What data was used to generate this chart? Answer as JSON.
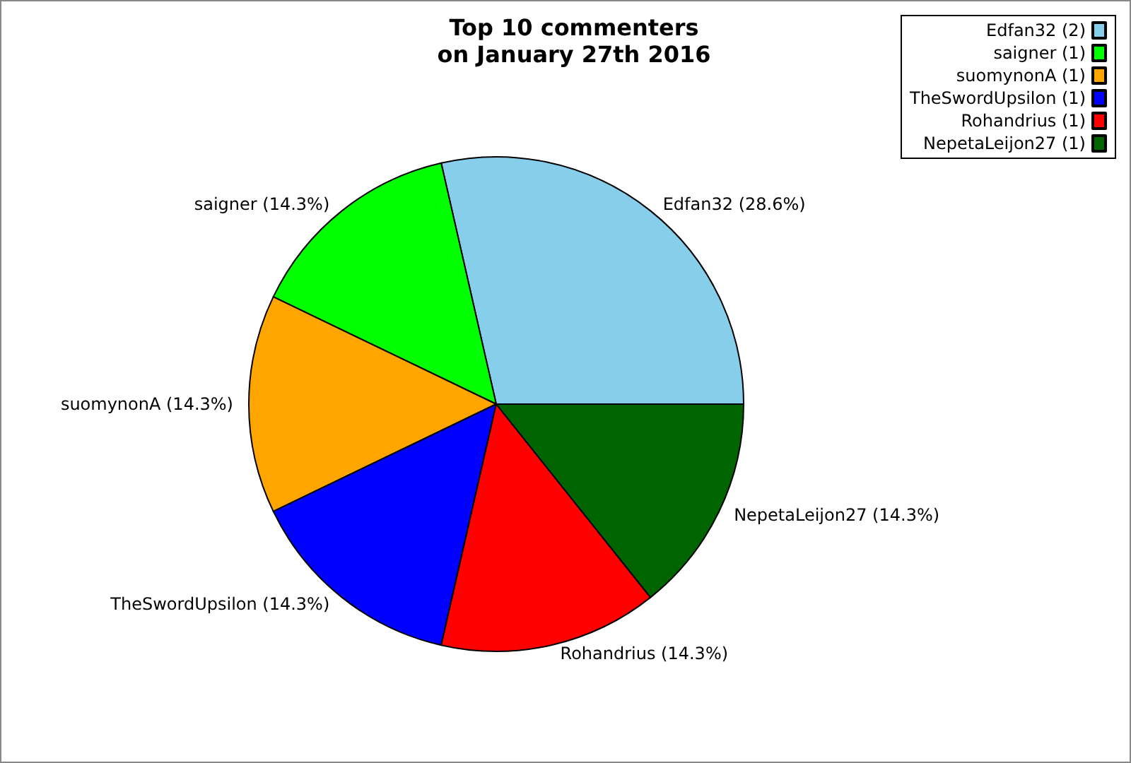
{
  "chart_data": {
    "type": "pie",
    "title": "Top 10 commenters\non January 27th 2016",
    "categories": [
      "Edfan32 (2)",
      "saigner (1)",
      "suomynonA (1)",
      "TheSwordUpsilon (1)",
      "Rohandrius (1)",
      "NepetaLeijon27 (1)"
    ],
    "values": [
      28.6,
      14.3,
      14.3,
      14.3,
      14.3,
      14.3
    ],
    "value_labels": [
      "Edfan32 (28.6%)",
      "saigner (14.3%)",
      "suomynonA (14.3%)",
      "TheSwordUpsilon (14.3%)",
      "Rohandrius (14.3%)",
      "NepetaLeijon27 (14.3%)"
    ],
    "colors": [
      "#87ceeb",
      "#00ff00",
      "#ffa500",
      "#0000ff",
      "#ff0000",
      "#006400"
    ],
    "legend": "top right"
  }
}
